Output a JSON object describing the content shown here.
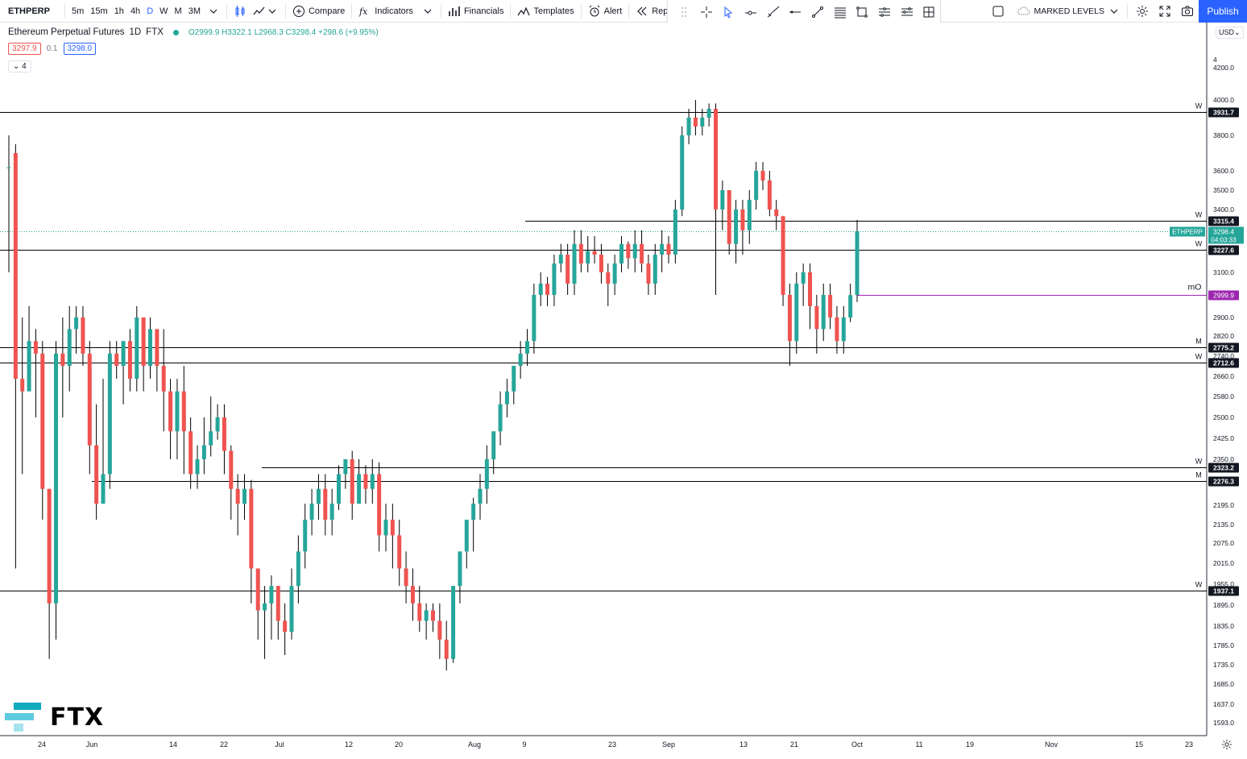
{
  "toolbar": {
    "symbol": "ETHPERP",
    "intervals": [
      "5m",
      "15m",
      "1h",
      "4h",
      "D",
      "W",
      "M",
      "3M"
    ],
    "active_interval": "D",
    "compare": "Compare",
    "indicators": "Indicators",
    "financials": "Financials",
    "templates": "Templates",
    "alert": "Alert",
    "replay": "Replay",
    "layout_name": "MARKED LEVELS",
    "publish": "Publish"
  },
  "legend": {
    "title": "Ethereum Perpetual Futures",
    "interval": "1D",
    "exchange": "FTX",
    "ohlc": "O2999.9 H3322.1 L2968.3 C3298.4 +298.6 (+9.95%)",
    "sell_price": "3297.9",
    "spread": "0.1",
    "buy_price": "3298.0",
    "collapse": "4"
  },
  "logo": {
    "text": "FTX"
  },
  "price_axis": {
    "currency": "USD",
    "ticks": [
      "4200.0",
      "4000.0",
      "3800.0",
      "3600.0",
      "3500.0",
      "3400.0",
      "3100.0",
      "2900.0",
      "2820.0",
      "2740.0",
      "2660.0",
      "2580.0",
      "2500.0",
      "2425.0",
      "2350.0",
      "2195.0",
      "2135.0",
      "2075.0",
      "2015.0",
      "1955.0",
      "1895.0",
      "1835.0",
      "1785.0",
      "1735.0",
      "1685.0",
      "1637.0",
      "1593.0"
    ],
    "top_tick_partial": "4"
  },
  "time_axis": {
    "labels": [
      "24",
      "Jun",
      "14",
      "22",
      "Jul",
      "12",
      "20",
      "Aug",
      "9",
      "23",
      "Sep",
      "13",
      "21",
      "Oct",
      "11",
      "19",
      "Nov",
      "15",
      "23"
    ]
  },
  "levels": [
    {
      "label": "W",
      "price": "3931.7"
    },
    {
      "label": "W",
      "price": "3315.4"
    },
    {
      "label": "W",
      "price": "3227.6"
    },
    {
      "label": "M",
      "price": "2775.2"
    },
    {
      "label": "W",
      "price": "2712.6"
    },
    {
      "label": "W",
      "price": "2323.2"
    },
    {
      "label": "M",
      "price": "2276.3"
    },
    {
      "label": "W",
      "price": "1937.1"
    }
  ],
  "monthly_open": {
    "label": "mO",
    "price": "2999.9",
    "color": "#9c27b0"
  },
  "last_price": {
    "symbol": "ETHPERP",
    "price": "3298.4",
    "countdown": "04:03:33",
    "color": "#26a69a"
  },
  "colors": {
    "up": "#26a69a",
    "down": "#ef5350",
    "accent": "#2962ff"
  },
  "chart_data": {
    "type": "candlestick",
    "title": "Ethereum Perpetual Futures, 1D, FTX",
    "ylim": [
      1570,
      4300
    ],
    "candles": [
      [
        3620,
        3620,
        3800,
        3100
      ],
      [
        3700,
        2650,
        3750,
        2000
      ],
      [
        2650,
        2600,
        2900,
        2300
      ],
      [
        2600,
        2800,
        2950,
        2700
      ],
      [
        2800,
        2750,
        2850,
        2500
      ],
      [
        2750,
        2250,
        2800,
        2150
      ],
      [
        2250,
        1900,
        2250,
        1750
      ],
      [
        1900,
        2750,
        2800,
        1800
      ],
      [
        2750,
        2700,
        2900,
        2500
      ],
      [
        2700,
        2850,
        2950,
        2600
      ],
      [
        2850,
        2900,
        2950,
        2750
      ],
      [
        2900,
        2750,
        2950,
        2700
      ],
      [
        2750,
        2400,
        2800,
        2300
      ],
      [
        2400,
        2200,
        2550,
        2150
      ],
      [
        2200,
        2300,
        2650,
        2200
      ],
      [
        2300,
        2750,
        2800,
        2250
      ],
      [
        2750,
        2700,
        2800,
        2650
      ],
      [
        2700,
        2800,
        2800,
        2550
      ],
      [
        2800,
        2650,
        2850,
        2600
      ],
      [
        2650,
        2900,
        2950,
        2600
      ],
      [
        2900,
        2700,
        2900,
        2600
      ],
      [
        2700,
        2850,
        2900,
        2650
      ],
      [
        2850,
        2700,
        2800,
        2600
      ],
      [
        2700,
        2600,
        2850,
        2450
      ],
      [
        2600,
        2450,
        2650,
        2350
      ],
      [
        2450,
        2600,
        2650,
        2350
      ],
      [
        2600,
        2450,
        2700,
        2300
      ],
      [
        2450,
        2300,
        2500,
        2250
      ],
      [
        2300,
        2350,
        2400,
        2250
      ],
      [
        2350,
        2400,
        2500,
        2300
      ],
      [
        2400,
        2450,
        2580,
        2360
      ],
      [
        2450,
        2500,
        2550,
        2420
      ],
      [
        2500,
        2380,
        2550,
        2300
      ],
      [
        2380,
        2250,
        2400,
        2150
      ],
      [
        2250,
        2200,
        2300,
        2100
      ],
      [
        2200,
        2250,
        2300,
        2150
      ],
      [
        2250,
        2000,
        2280,
        1900
      ],
      [
        2000,
        1880,
        2000,
        1800
      ],
      [
        1880,
        1900,
        1950,
        1750
      ],
      [
        1900,
        1950,
        1980,
        1800
      ],
      [
        1950,
        1850,
        1950,
        1800
      ],
      [
        1850,
        1820,
        1900,
        1760
      ],
      [
        1820,
        1950,
        2000,
        1800
      ],
      [
        1950,
        2050,
        2100,
        1900
      ],
      [
        2050,
        2150,
        2200,
        2000
      ],
      [
        2150,
        2200,
        2250,
        2100
      ],
      [
        2200,
        2250,
        2300,
        2150
      ],
      [
        2250,
        2150,
        2300,
        2100
      ],
      [
        2150,
        2200,
        2250,
        2100
      ],
      [
        2200,
        2300,
        2330,
        2180
      ],
      [
        2300,
        2350,
        2350,
        2250
      ],
      [
        2350,
        2200,
        2380,
        2150
      ],
      [
        2200,
        2300,
        2350,
        2200
      ],
      [
        2300,
        2250,
        2330,
        2200
      ],
      [
        2250,
        2300,
        2350,
        2200
      ],
      [
        2300,
        2100,
        2340,
        2050
      ],
      [
        2100,
        2150,
        2200,
        2050
      ],
      [
        2150,
        2100,
        2200,
        2000
      ],
      [
        2100,
        2000,
        2150,
        1950
      ],
      [
        2000,
        1950,
        2050,
        1900
      ],
      [
        1950,
        1900,
        2000,
        1850
      ],
      [
        1900,
        1850,
        1950,
        1820
      ],
      [
        1850,
        1880,
        1900,
        1800
      ],
      [
        1880,
        1850,
        1900,
        1820
      ],
      [
        1850,
        1800,
        1900,
        1750
      ],
      [
        1800,
        1750,
        1850,
        1720
      ],
      [
        1750,
        1950,
        1950,
        1740
      ],
      [
        1950,
        2050,
        2050,
        1900
      ],
      [
        2050,
        2150,
        2150,
        2000
      ],
      [
        2150,
        2200,
        2220,
        2050
      ],
      [
        2200,
        2250,
        2300,
        2150
      ],
      [
        2250,
        2350,
        2400,
        2200
      ],
      [
        2350,
        2450,
        2450,
        2300
      ],
      [
        2450,
        2550,
        2600,
        2400
      ],
      [
        2550,
        2600,
        2650,
        2500
      ],
      [
        2600,
        2700,
        2700,
        2550
      ],
      [
        2700,
        2750,
        2800,
        2650
      ],
      [
        2750,
        2800,
        2850,
        2700
      ],
      [
        2800,
        3000,
        3050,
        2750
      ],
      [
        3000,
        3050,
        3100,
        2950
      ],
      [
        3050,
        3000,
        3080,
        2950
      ],
      [
        3000,
        3150,
        3200,
        2950
      ],
      [
        3150,
        3200,
        3250,
        3100
      ],
      [
        3200,
        3050,
        3250,
        3000
      ],
      [
        3050,
        3250,
        3300,
        3000
      ],
      [
        3250,
        3150,
        3300,
        3100
      ],
      [
        3150,
        3220,
        3280,
        3100
      ],
      [
        3220,
        3200,
        3280,
        3150
      ],
      [
        3200,
        3100,
        3250,
        3050
      ],
      [
        3100,
        3050,
        3150,
        2950
      ],
      [
        3050,
        3150,
        3200,
        3000
      ],
      [
        3150,
        3250,
        3280,
        3100
      ],
      [
        3250,
        3180,
        3260,
        3120
      ],
      [
        3180,
        3250,
        3300,
        3100
      ],
      [
        3250,
        3150,
        3300,
        3100
      ],
      [
        3150,
        3050,
        3200,
        3000
      ],
      [
        3050,
        3200,
        3250,
        3000
      ],
      [
        3200,
        3250,
        3300,
        3100
      ],
      [
        3250,
        3200,
        3280,
        3150
      ],
      [
        3200,
        3400,
        3450,
        3150
      ],
      [
        3400,
        3800,
        3850,
        3350
      ],
      [
        3800,
        3900,
        3950,
        3750
      ],
      [
        3900,
        3850,
        4000,
        3800
      ],
      [
        3850,
        3900,
        3950,
        3800
      ],
      [
        3900,
        3950,
        3980,
        3850
      ],
      [
        3950,
        3400,
        3980,
        3000
      ],
      [
        3400,
        3500,
        3550,
        3300
      ],
      [
        3500,
        3250,
        3500,
        3200
      ],
      [
        3250,
        3400,
        3450,
        3150
      ],
      [
        3400,
        3300,
        3450,
        3200
      ],
      [
        3300,
        3450,
        3500,
        3250
      ],
      [
        3450,
        3600,
        3650,
        3400
      ],
      [
        3600,
        3550,
        3650,
        3500
      ],
      [
        3550,
        3400,
        3600,
        3350
      ],
      [
        3400,
        3350,
        3450,
        3300
      ],
      [
        3350,
        3000,
        3350,
        2950
      ],
      [
        3000,
        2800,
        3050,
        2700
      ],
      [
        2800,
        3050,
        3100,
        2750
      ],
      [
        3050,
        3100,
        3150,
        2950
      ],
      [
        3100,
        2950,
        3150,
        2850
      ],
      [
        2950,
        2850,
        3000,
        2750
      ],
      [
        2850,
        3000,
        3050,
        2800
      ],
      [
        3000,
        2900,
        3050,
        2850
      ],
      [
        2900,
        2800,
        2950,
        2750
      ],
      [
        2800,
        2900,
        2950,
        2750
      ],
      [
        2900,
        2999,
        3050,
        2880
      ],
      [
        2999.9,
        3298.4,
        3322.1,
        2968.3
      ]
    ]
  }
}
